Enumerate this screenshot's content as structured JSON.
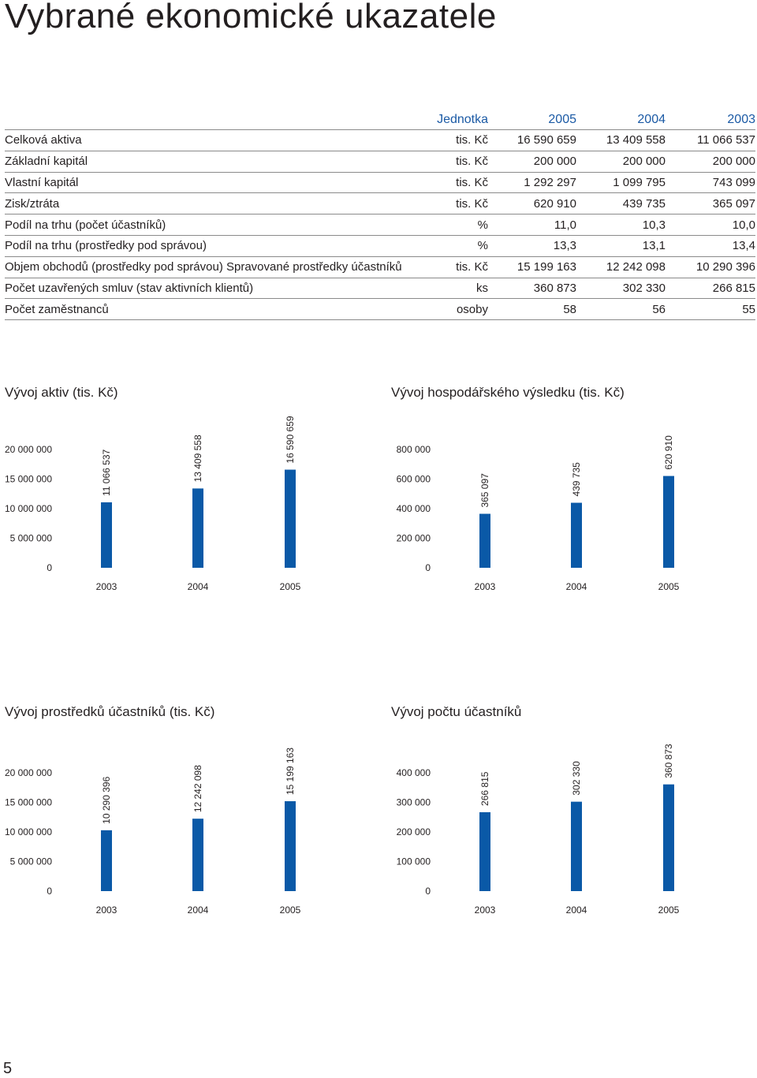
{
  "page": {
    "title": "Vybrané ekonomické ukazatele",
    "page_number": "5"
  },
  "table": {
    "headers": [
      "",
      "Jednotka",
      "2005",
      "2004",
      "2003"
    ],
    "rows": [
      {
        "label": "Celková aktiva",
        "unit": "tis. Kč",
        "values": [
          "16 590 659",
          "13 409 558",
          "11 066 537"
        ]
      },
      {
        "label": "Základní kapitál",
        "unit": "tis. Kč",
        "values": [
          "200 000",
          "200 000",
          "200 000"
        ]
      },
      {
        "label": "Vlastní kapitál",
        "unit": "tis. Kč",
        "values": [
          "1 292 297",
          "1 099 795",
          "743 099"
        ]
      },
      {
        "label": "Zisk/ztráta",
        "unit": "tis. Kč",
        "values": [
          "620 910",
          "439 735",
          "365 097"
        ]
      },
      {
        "label": "Podíl na trhu (počet účastníků)",
        "unit": "%",
        "values": [
          "11,0",
          "10,3",
          "10,0"
        ]
      },
      {
        "label": "Podíl na trhu (prostředky pod správou)",
        "unit": "%",
        "values": [
          "13,3",
          "13,1",
          "13,4"
        ]
      },
      {
        "label": "Objem obchodů (prostředky pod správou) Spravované prostředky účastníků",
        "unit": "tis. Kč",
        "values": [
          "15 199 163",
          "12 242 098",
          "10 290 396"
        ]
      },
      {
        "label": "Počet uzavřených smluv (stav aktivních klientů)",
        "unit": "ks",
        "values": [
          "360 873",
          "302 330",
          "266 815"
        ]
      },
      {
        "label": "Počet zaměstnanců",
        "unit": "osoby",
        "values": [
          "58",
          "56",
          "55"
        ]
      }
    ]
  },
  "colors": {
    "bar": "#0a59a7",
    "header_text": "#1b5aa5",
    "rule": "#8a8a8a"
  },
  "chart_data": [
    {
      "type": "bar",
      "title": "Vývoj aktiv (tis. Kč)",
      "categories": [
        "2003",
        "2004",
        "2005"
      ],
      "values": [
        11066537,
        13409558,
        16590659
      ],
      "value_labels": [
        "11 066 537",
        "13 409 558",
        "16 590 659"
      ],
      "yticks": [
        0,
        5000000,
        10000000,
        15000000,
        20000000
      ],
      "ytick_labels": [
        "0",
        "5 000 000",
        "10 000 000",
        "15 000 000",
        "20 000 000"
      ],
      "ylim": [
        0,
        20000000
      ],
      "grid": false
    },
    {
      "type": "bar",
      "title": "Vývoj hospodářského výsledku (tis. Kč)",
      "categories": [
        "2003",
        "2004",
        "2005"
      ],
      "values": [
        365097,
        439735,
        620910
      ],
      "value_labels": [
        "365 097",
        "439 735",
        "620 910"
      ],
      "yticks": [
        0,
        200000,
        400000,
        600000,
        800000
      ],
      "ytick_labels": [
        "0",
        "200 000",
        "400 000",
        "600 000",
        "800 000"
      ],
      "ylim": [
        0,
        800000
      ],
      "grid": false
    },
    {
      "type": "bar",
      "title": "Vývoj prostředků účastníků (tis. Kč)",
      "categories": [
        "2003",
        "2004",
        "2005"
      ],
      "values": [
        10290396,
        12242098,
        15199163
      ],
      "value_labels": [
        "10 290 396",
        "12 242 098",
        "15 199 163"
      ],
      "yticks": [
        0,
        5000000,
        10000000,
        15000000,
        20000000
      ],
      "ytick_labels": [
        "0",
        "5 000 000",
        "10 000 000",
        "15 000 000",
        "20 000 000"
      ],
      "ylim": [
        0,
        20000000
      ],
      "grid": false
    },
    {
      "type": "bar",
      "title": "Vývoj počtu účastníků",
      "categories": [
        "2003",
        "2004",
        "2005"
      ],
      "values": [
        266815,
        302330,
        360873
      ],
      "value_labels": [
        "266 815",
        "302 330",
        "360 873"
      ],
      "yticks": [
        0,
        100000,
        200000,
        300000,
        400000
      ],
      "ytick_labels": [
        "0",
        "100 000",
        "200 000",
        "300 000",
        "400 000"
      ],
      "ylim": [
        0,
        400000
      ],
      "grid": false
    }
  ]
}
